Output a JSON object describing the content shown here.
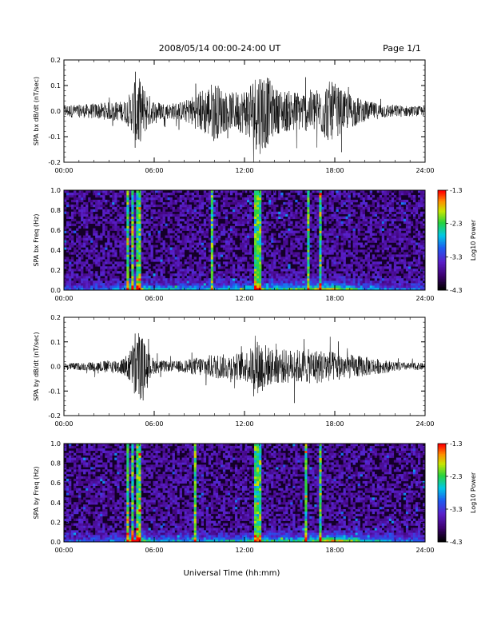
{
  "header": {
    "title": "2008/05/14  00:00-24:00 UT",
    "page": "Page 1/1"
  },
  "x_axis_label": "Universal Time (hh:mm)",
  "chart_data": [
    {
      "type": "line",
      "ylabel": "SPA bx dB/dt (nT/sec)",
      "xlim": [
        0,
        24
      ],
      "ylim": [
        -0.2,
        0.2
      ],
      "xticks": [
        "00:00",
        "06:00",
        "12:00",
        "18:00",
        "24:00"
      ],
      "yticks": [
        "-0.2",
        "-0.1",
        "0.0",
        "0.1",
        "0.2"
      ],
      "envelope": {
        "hours": [
          0,
          1,
          2,
          3,
          4,
          4.5,
          4.8,
          5.0,
          5.3,
          5.6,
          6,
          7,
          8,
          8.5,
          9,
          9.5,
          10,
          10.5,
          11,
          11.5,
          12,
          12.5,
          13,
          13.3,
          13.6,
          14,
          15,
          16,
          17,
          17.5,
          18,
          18.5,
          19,
          20,
          21,
          22,
          23,
          24
        ],
        "amplitude": [
          0.025,
          0.025,
          0.03,
          0.035,
          0.04,
          0.08,
          0.17,
          0.13,
          0.1,
          0.07,
          0.04,
          0.03,
          0.04,
          0.06,
          0.08,
          0.1,
          0.12,
          0.09,
          0.07,
          0.08,
          0.09,
          0.13,
          0.17,
          0.16,
          0.13,
          0.09,
          0.08,
          0.08,
          0.09,
          0.12,
          0.11,
          0.08,
          0.07,
          0.04,
          0.03,
          0.025,
          0.02,
          0.02
        ]
      }
    },
    {
      "type": "heatmap",
      "ylabel": "SPA bx Freq (Hz)",
      "xlim": [
        0,
        24
      ],
      "ylim": [
        0,
        1.0
      ],
      "xticks": [
        "00:00",
        "06:00",
        "12:00",
        "18:00",
        "24:00"
      ],
      "yticks": [
        "0.0",
        "0.2",
        "0.4",
        "0.6",
        "0.8",
        "1.0"
      ],
      "colorbar": {
        "label": "Log10 Power",
        "ticks": [
          "-1.3",
          "-2.3",
          "-3.3",
          "-4.3"
        ],
        "range": [
          -4.3,
          -1.3
        ]
      },
      "bursts_hours": [
        4.3,
        4.5,
        4.9,
        5.05,
        9.9,
        12.8,
        13.1,
        16.2,
        17.0
      ],
      "low_freq_band": {
        "hours": [
          0,
          2,
          4,
          4.5,
          5,
          6,
          9,
          12,
          14,
          16,
          17,
          18,
          19,
          20,
          22,
          24
        ],
        "strength": [
          0.3,
          0.3,
          0.4,
          0.9,
          0.8,
          0.45,
          0.45,
          0.6,
          0.65,
          0.7,
          0.85,
          0.8,
          0.65,
          0.45,
          0.3,
          0.3
        ]
      }
    },
    {
      "type": "line",
      "ylabel": "SPA by dB/dt (nT/sec)",
      "xlim": [
        0,
        24
      ],
      "ylim": [
        -0.2,
        0.2
      ],
      "xticks": [
        "00:00",
        "06:00",
        "12:00",
        "18:00",
        "24:00"
      ],
      "yticks": [
        "-0.2",
        "-0.1",
        "0.0",
        "0.1",
        "0.2"
      ],
      "envelope": {
        "hours": [
          0,
          1,
          2,
          3,
          4,
          4.5,
          4.8,
          5.0,
          5.3,
          5.6,
          6,
          7,
          8,
          9,
          10,
          11,
          12,
          12.5,
          13,
          13.3,
          13.6,
          14,
          15,
          16,
          17,
          18,
          19,
          20,
          21,
          22,
          23,
          24
        ],
        "amplitude": [
          0.015,
          0.015,
          0.02,
          0.025,
          0.035,
          0.08,
          0.17,
          0.15,
          0.11,
          0.06,
          0.03,
          0.02,
          0.025,
          0.04,
          0.05,
          0.05,
          0.06,
          0.08,
          0.12,
          0.1,
          0.08,
          0.07,
          0.07,
          0.07,
          0.07,
          0.06,
          0.05,
          0.04,
          0.03,
          0.02,
          0.015,
          0.015
        ]
      }
    },
    {
      "type": "heatmap",
      "ylabel": "SPA by Freq (Hz)",
      "xlim": [
        0,
        24
      ],
      "ylim": [
        0,
        1.0
      ],
      "xticks": [
        "00:00",
        "06:00",
        "12:00",
        "18:00",
        "24:00"
      ],
      "yticks": [
        "0.0",
        "0.2",
        "0.4",
        "0.6",
        "0.8",
        "1.0"
      ],
      "colorbar": {
        "label": "Log10 Power",
        "ticks": [
          "-1.3",
          "-2.3",
          "-3.3",
          "-4.3"
        ],
        "range": [
          -4.3,
          -1.3
        ]
      },
      "bursts_hours": [
        4.3,
        4.5,
        4.9,
        5.05,
        8.7,
        12.8,
        13.0,
        16.1,
        17.1
      ],
      "low_freq_band": {
        "hours": [
          0,
          2,
          4,
          4.5,
          5,
          6,
          9,
          12,
          14,
          16,
          17,
          18,
          19,
          20,
          22,
          24
        ],
        "strength": [
          0.3,
          0.3,
          0.4,
          0.9,
          0.8,
          0.45,
          0.45,
          0.55,
          0.6,
          0.65,
          0.8,
          0.9,
          0.8,
          0.6,
          0.35,
          0.3
        ]
      }
    }
  ]
}
